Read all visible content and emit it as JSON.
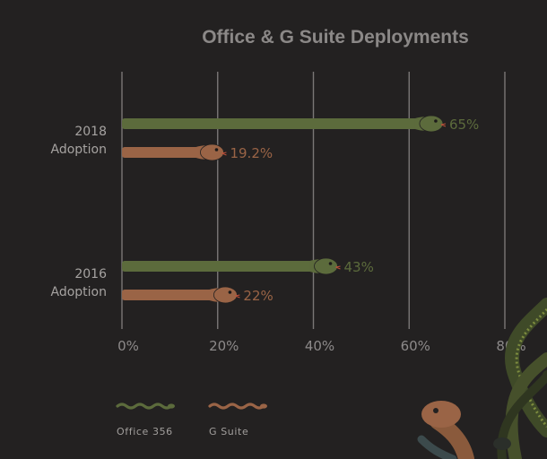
{
  "chart_data": {
    "type": "bar",
    "title": "Office & G Suite Deployments",
    "categories": [
      "2018 Adoption",
      "2016 Adoption"
    ],
    "category_lines": [
      [
        "2018",
        "Adoption"
      ],
      [
        "2016",
        "Adoption"
      ]
    ],
    "series": [
      {
        "name": "Office 356",
        "color": "#5c6b3c",
        "values": [
          65,
          43
        ],
        "labels": [
          "65%",
          "43%"
        ]
      },
      {
        "name": "G Suite",
        "color": "#9a6446",
        "values": [
          19.2,
          22
        ],
        "labels": [
          "19.2%",
          "22%"
        ]
      }
    ],
    "xlim": [
      0,
      80
    ],
    "xticks": [
      "0%",
      "20%",
      "40%",
      "60%",
      "80%"
    ],
    "xlabel": "",
    "ylabel": "",
    "orientation": "horizontal",
    "grid": true,
    "legend_position": "bottom-left",
    "bar_style": "snake",
    "decoration": "snake-illustration"
  }
}
